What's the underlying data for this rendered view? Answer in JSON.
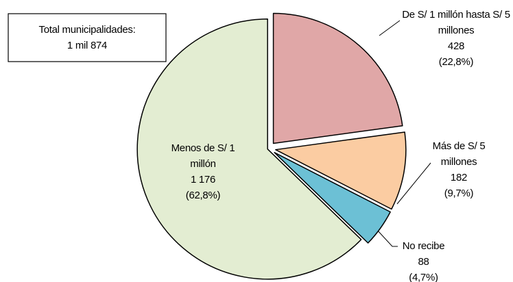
{
  "chart_data": {
    "type": "pie",
    "categories": [
      "De S/ 1 millón hasta S/ 5 millones",
      "Más de S/ 5 millones",
      "No recibe",
      "Menos de S/ 1 millón"
    ],
    "values": [
      428,
      182,
      88,
      1176
    ],
    "value_labels": [
      "428",
      "182",
      "88",
      "1 176"
    ],
    "percent_labels": [
      "(22,8%)",
      "(9,7%)",
      "(4,7%)",
      "(62,8%)"
    ],
    "colors": [
      "#e0a7a7",
      "#fbcca2",
      "#6cc0d5",
      "#e3edd2"
    ],
    "annotation": [
      "Total municipalidades:",
      "1 mil 874"
    ]
  }
}
